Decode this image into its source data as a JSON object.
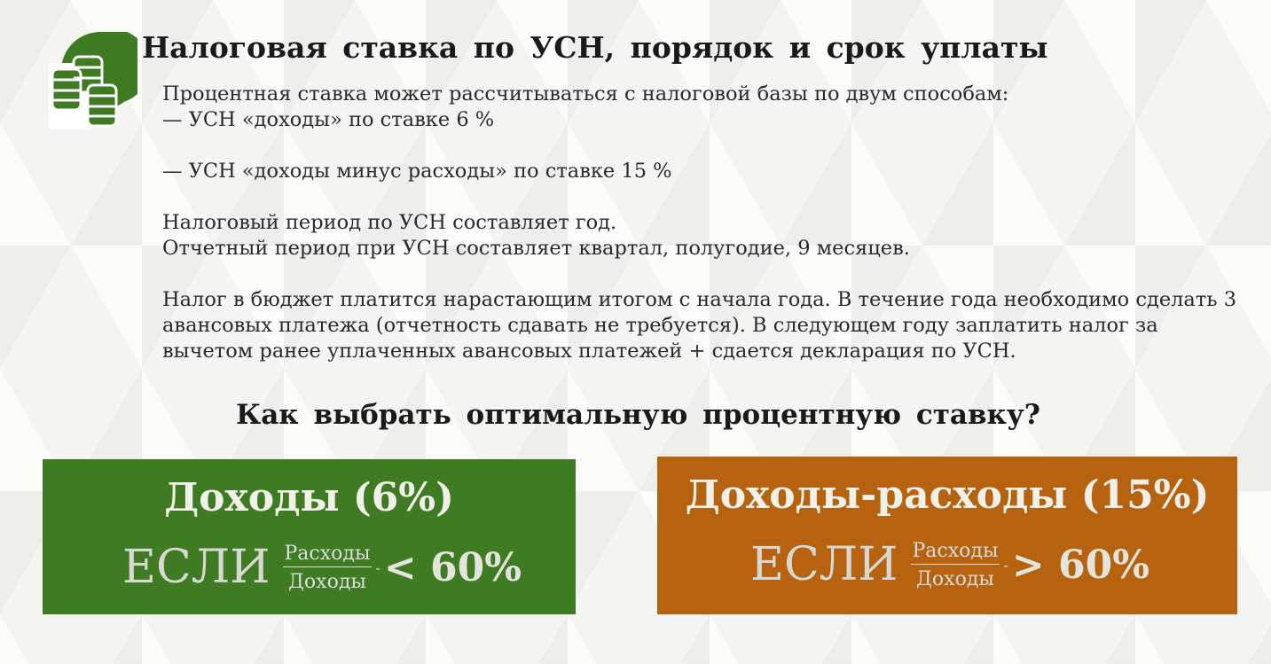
{
  "title": "Налоговая ставка по УСН, порядок и срок уплаты",
  "paragraphs": [
    "Процентная ставка может рассчитываться с налоговой базы по двум способам:",
    "— УСН «доходы» по ставке 6 %",
    "— УСН «доходы минус расходы» по ставке 15 %",
    "Налоговый период по УСН составляет год.",
    "Отчетный период при УСН составляет квартал, полугодие, 9 месяцев.",
    "Налог в бюджет платится нарастающим итогом с начала года. В течение года необходимо сделать 3 авансовых платежа (отчетность сдавать не требуется). В следующем году заплатить налог за вычетом ранее уплаченных авансовых платежей + сдается декларация по УСН."
  ],
  "question": "Как выбрать оптимальную процентную ставку?",
  "options": [
    {
      "title": "Доходы (6%)",
      "if": "ЕСЛИ",
      "numerator": "Расходы",
      "denominator": "Доходы",
      "dash": "-",
      "comparison": "< 60%",
      "color": "#3e7b22"
    },
    {
      "title": "Доходы-расходы (15%)",
      "if": "ЕСЛИ",
      "numerator": "Расходы",
      "denominator": "Доходы",
      "dash": "-",
      "comparison": "> 60%",
      "color": "#b6620f"
    }
  ],
  "icon": "coins-stack-icon"
}
